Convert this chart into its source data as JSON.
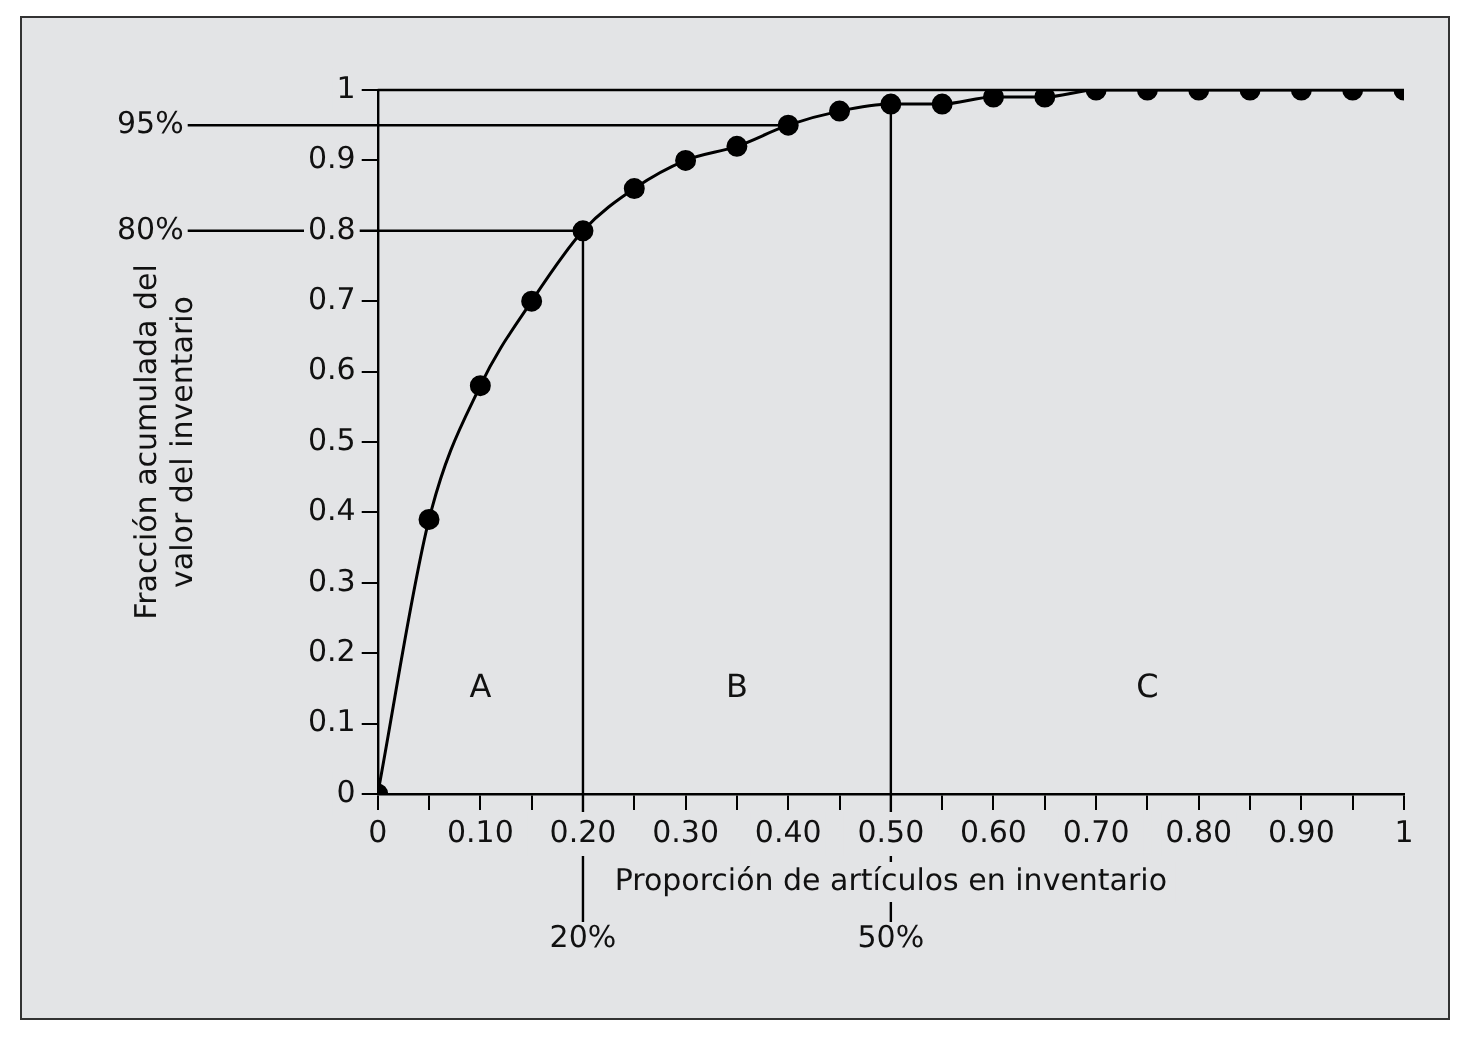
{
  "chart_data": {
    "type": "line",
    "xlabel": "Proporción de artículos en inventario",
    "ylabel": "Fracción acumulada del\nvalor del inventario",
    "x": [
      0,
      0.05,
      0.1,
      0.15,
      0.2,
      0.25,
      0.3,
      0.35,
      0.4,
      0.45,
      0.5,
      0.55,
      0.6,
      0.65,
      0.7,
      0.75,
      0.8,
      0.85,
      0.9,
      0.95,
      1
    ],
    "series": [
      {
        "color": "#000000",
        "values": [
          0,
          0.39,
          0.58,
          0.7,
          0.8,
          0.86,
          0.9,
          0.92,
          0.95,
          0.97,
          0.98,
          0.98,
          0.99,
          0.99,
          1,
          1,
          1,
          1,
          1,
          1,
          1
        ]
      }
    ],
    "xlim": [
      0,
      1
    ],
    "ylim": [
      0,
      1
    ],
    "xticks": [
      0,
      {
        "value": 0.05,
        "label": null
      },
      {
        "value": 0.1,
        "label": "0.10"
      },
      {
        "value": 0.15,
        "label": null
      },
      {
        "value": 0.2,
        "label": "0.20"
      },
      {
        "value": 0.25,
        "label": null
      },
      {
        "value": 0.3,
        "label": "0.30"
      },
      {
        "value": 0.35,
        "label": null
      },
      {
        "value": 0.4,
        "label": "0.40"
      },
      {
        "value": 0.45,
        "label": null
      },
      {
        "value": 0.5,
        "label": "0.50"
      },
      {
        "value": 0.55,
        "label": null
      },
      {
        "value": 0.6,
        "label": "0.60"
      },
      {
        "value": 0.65,
        "label": null
      },
      {
        "value": 0.7,
        "label": "0.70"
      },
      {
        "value": 0.75,
        "label": null
      },
      {
        "value": 0.8,
        "label": "0.80"
      },
      {
        "value": 0.85,
        "label": null
      },
      {
        "value": 0.9,
        "label": "0.90"
      },
      {
        "value": 0.95,
        "label": null
      },
      1
    ],
    "yticks": [
      0,
      0.1,
      0.2,
      0.3,
      0.4,
      0.5,
      0.6,
      0.7,
      0.8,
      0.9,
      1
    ],
    "ref_lines": [
      {
        "axis": "y",
        "value": 0.95,
        "label": "95%"
      },
      {
        "axis": "y",
        "value": 0.8,
        "label": "80%"
      },
      {
        "axis": "x",
        "value": 0.2,
        "label": "20%"
      },
      {
        "axis": "x",
        "value": 0.5,
        "label": "50%"
      }
    ],
    "annotations": [
      "A",
      "B",
      "C"
    ],
    "grid": false,
    "legend": false,
    "marker": "circle",
    "line_style": "solid"
  }
}
